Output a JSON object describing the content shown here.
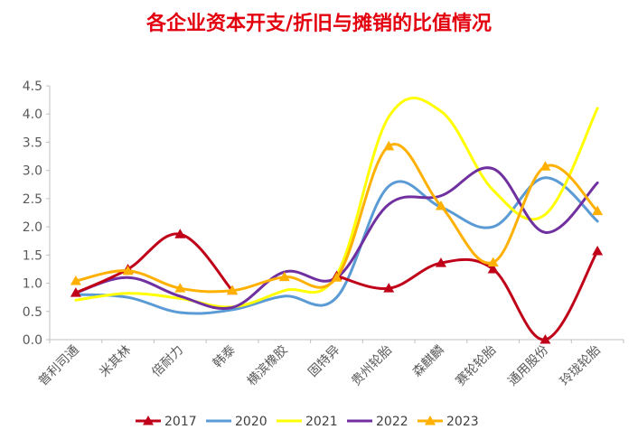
{
  "colors": {
    "title": "#e3000f",
    "axis": "#bfbfbf",
    "tick_text": "#595959"
  },
  "chart_data": {
    "type": "line",
    "title": "各企业资本开支/折旧与摊销的比值情况",
    "xlabel": "",
    "ylabel": "",
    "categories": [
      "普利司通",
      "米其林",
      "倍耐力",
      "韩泰",
      "横滨橡胶",
      "固特异",
      "贵州轮胎",
      "森麒麟",
      "赛轮轮胎",
      "通用股份",
      "玲珑轮胎"
    ],
    "ylim": [
      0,
      4.5
    ],
    "yticks": [
      "0.0",
      "0.5",
      "1.0",
      "1.5",
      "2.0",
      "2.5",
      "3.0",
      "3.5",
      "4.0",
      "4.5"
    ],
    "grid": false,
    "legend_position": "bottom",
    "series": [
      {
        "name": "2017",
        "color": "#c00018",
        "marker": "triangle",
        "values": [
          0.83,
          1.25,
          1.87,
          0.87,
          null,
          1.13,
          0.91,
          1.36,
          1.25,
          0.0,
          1.57
        ]
      },
      {
        "name": "2020",
        "color": "#5b9bd5",
        "marker": "none",
        "values": [
          0.8,
          0.75,
          0.48,
          0.53,
          0.77,
          0.75,
          2.72,
          2.35,
          2.0,
          2.87,
          2.1
        ]
      },
      {
        "name": "2021",
        "color": "#ffff00",
        "marker": "none",
        "values": [
          0.7,
          0.82,
          0.73,
          0.58,
          0.87,
          1.15,
          3.95,
          4.05,
          2.65,
          2.22,
          4.1
        ]
      },
      {
        "name": "2022",
        "color": "#7030a0",
        "marker": "none",
        "values": [
          0.83,
          1.1,
          0.77,
          0.57,
          1.2,
          1.1,
          2.4,
          2.55,
          3.03,
          1.9,
          2.78
        ]
      },
      {
        "name": "2023",
        "color": "#ffb000",
        "marker": "triangle",
        "values": [
          1.04,
          1.22,
          0.91,
          0.87,
          1.11,
          1.1,
          3.43,
          2.37,
          1.37,
          3.07,
          2.28
        ]
      }
    ]
  }
}
